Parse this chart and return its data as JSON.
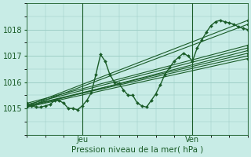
{
  "title": "Pression niveau de la mer( hPa )",
  "bg_color": "#c8ece6",
  "grid_color": "#9ecfc7",
  "line_color": "#1a5c28",
  "marker_color": "#1a5c28",
  "ylim": [
    1014.3,
    1018.9
  ],
  "xlim": [
    0,
    48
  ],
  "yticks": [
    1015,
    1016,
    1017,
    1018
  ],
  "xtick_positions": [
    12,
    36
  ],
  "xtick_labels": [
    "Jeu",
    "Ven"
  ],
  "vlines": [
    12,
    36
  ],
  "series": [
    [
      0,
      1015.1,
      1,
      1015.1,
      2,
      1015.05,
      3,
      1015.05,
      4,
      1015.1,
      5,
      1015.15,
      6,
      1015.3,
      7,
      1015.3,
      8,
      1015.2,
      9,
      1015.0,
      10,
      1015.0,
      11,
      1014.95,
      12,
      1015.1,
      13,
      1015.3,
      14,
      1015.6,
      15,
      1016.3,
      16,
      1017.05,
      17,
      1016.8,
      18,
      1016.3,
      19,
      1016.0,
      20,
      1015.95,
      21,
      1015.7,
      22,
      1015.5,
      23,
      1015.5,
      24,
      1015.2,
      25,
      1015.1,
      26,
      1015.05,
      27,
      1015.3,
      28,
      1015.55,
      29,
      1015.9,
      30,
      1016.3,
      31,
      1016.55,
      32,
      1016.8,
      33,
      1016.95,
      34,
      1017.1,
      35,
      1017.0,
      36,
      1016.8,
      37,
      1017.3,
      38,
      1017.6,
      39,
      1017.9,
      40,
      1018.15,
      41,
      1018.3,
      42,
      1018.35,
      43,
      1018.3,
      44,
      1018.25,
      45,
      1018.2,
      46,
      1018.1,
      47,
      1018.05,
      48,
      1018.0
    ],
    [
      0,
      1015.1,
      48,
      1017.1
    ],
    [
      0,
      1015.05,
      48,
      1017.2
    ],
    [
      0,
      1015.1,
      48,
      1017.0
    ],
    [
      0,
      1015.05,
      48,
      1016.9
    ],
    [
      0,
      1015.15,
      48,
      1017.3
    ],
    [
      0,
      1015.2,
      48,
      1017.4
    ],
    [
      0,
      1015.1,
      48,
      1018.35
    ],
    [
      0,
      1015.05,
      48,
      1018.2
    ]
  ]
}
